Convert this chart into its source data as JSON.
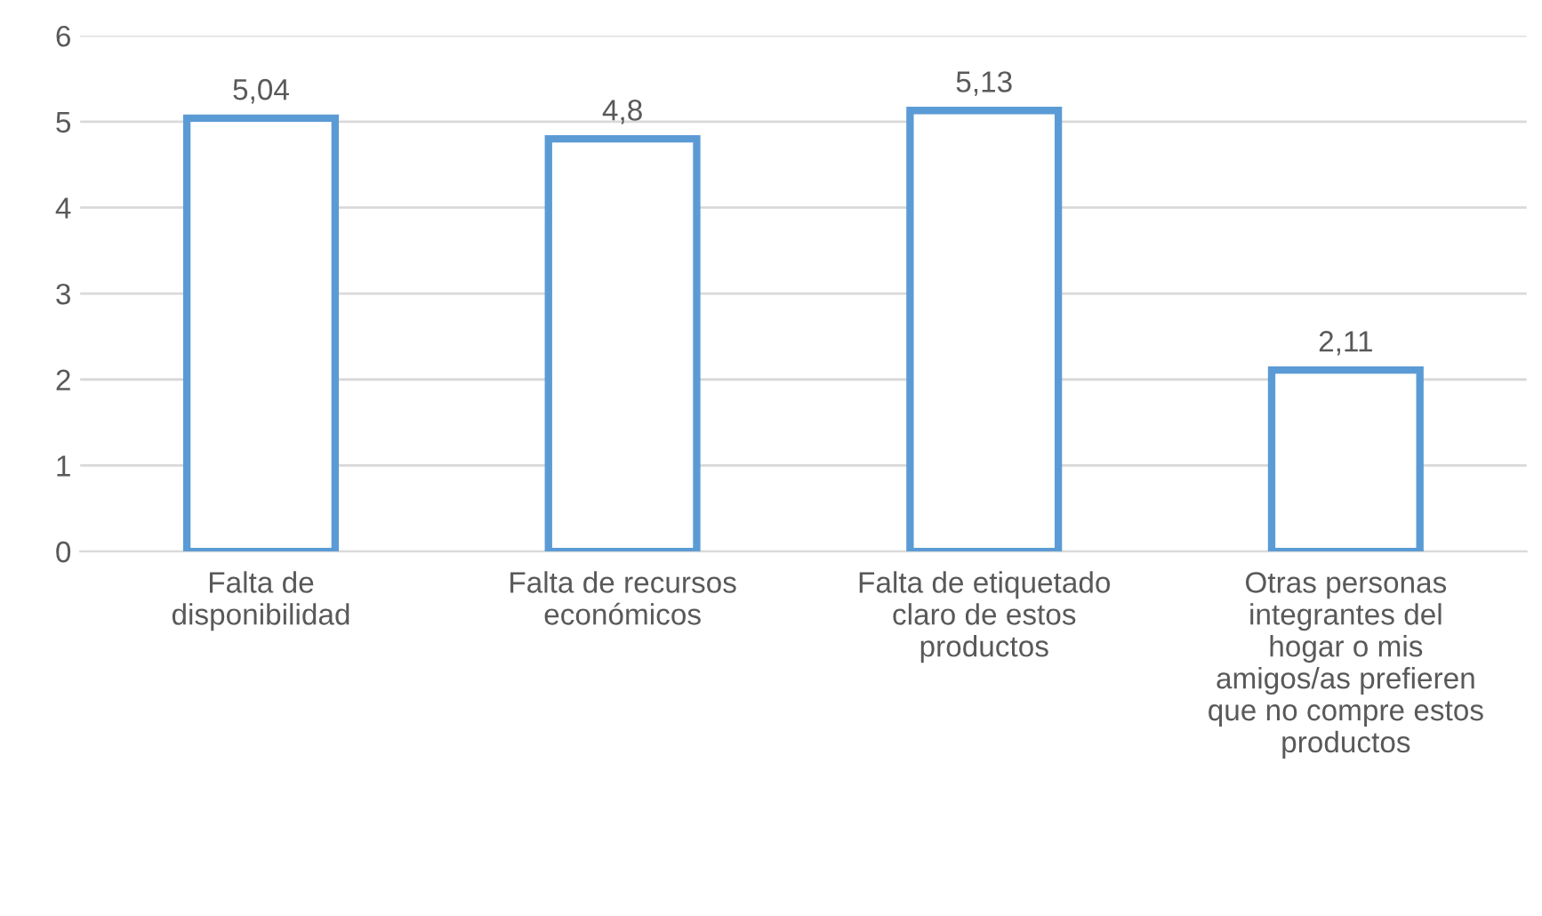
{
  "chart_data": {
    "type": "bar",
    "categories": [
      "Falta de disponibilidad",
      "Falta de recursos económicos",
      "Falta de etiquetado claro de estos productos",
      "Otras personas integrantes del hogar o mis amigos/as prefieren que no compre estos productos"
    ],
    "values": [
      5.04,
      4.8,
      5.13,
      2.11
    ],
    "value_labels": [
      "5,04",
      "4,8",
      "5,13",
      "2,11"
    ],
    "color": "#5b9bd5",
    "ylim": [
      0,
      6
    ],
    "yticks": [
      0,
      1,
      2,
      3,
      4,
      5,
      6
    ],
    "grid": "y",
    "legend": false
  }
}
